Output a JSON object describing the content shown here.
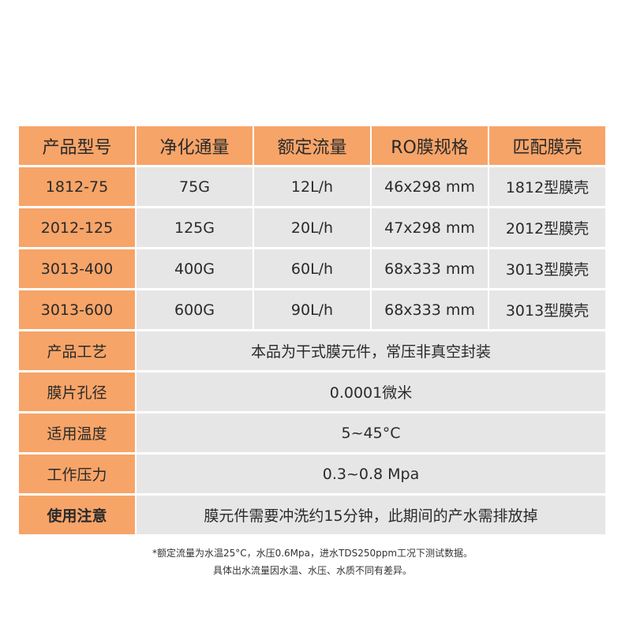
{
  "table": {
    "headers": [
      "产品型号",
      "净化通量",
      "额定流量",
      "RO膜规格",
      "匹配膜壳"
    ],
    "rows": [
      [
        "1812-75",
        "75G",
        "12L/h",
        "46x298 mm",
        "1812型膜壳"
      ],
      [
        "2012-125",
        "125G",
        "20L/h",
        "47x298 mm",
        "2012型膜壳"
      ],
      [
        "3013-400",
        "400G",
        "60L/h",
        "68x333 mm",
        "3013型膜壳"
      ],
      [
        "3013-600",
        "600G",
        "90L/h",
        "68x333 mm",
        "3013型膜壳"
      ]
    ],
    "specs": [
      {
        "label": "产品工艺",
        "value": "本品为干式膜元件，常压非真空封装"
      },
      {
        "label": "膜片孔径",
        "value": "0.0001微米"
      },
      {
        "label": "适用温度",
        "value": "5~45°C"
      },
      {
        "label": "工作压力",
        "value": "0.3~0.8 Mpa"
      },
      {
        "label": "使用注意",
        "value": "膜元件需要冲洗约15分钟，此期间的产水需排放掉"
      }
    ]
  },
  "notes": {
    "line1": "*额定流量为水温25°C，水压0.6Mpa，进水TDS250ppm工况下测试数据。",
    "line2": "具体出水流量因水温、水压、水质不同有差异。"
  },
  "colors": {
    "header_bg": "#f7a468",
    "cell_bg": "#e6e6e6"
  }
}
